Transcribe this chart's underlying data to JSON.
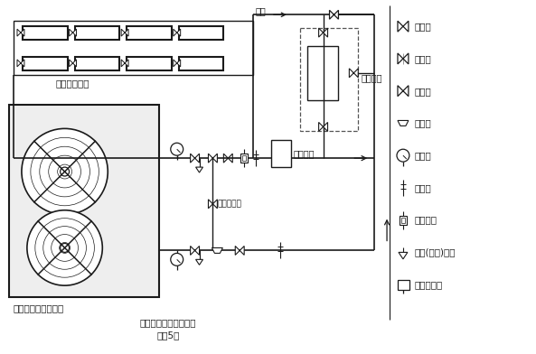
{
  "title": "闭式水系统安装参考图",
  "subtitle": "（图5）",
  "chiller_label": "风冷冷（热）水主机",
  "fancoil_label": "空调末端机组",
  "elec_heater_label": "电加热器",
  "bypass_label": "维护旁通阀",
  "water_supply_label": "补水",
  "legend": [
    "截止阀",
    "止回阀",
    "调节阀",
    "过滤器",
    "压力表",
    "温度计",
    "流量开关",
    "排水(排气)接头",
    "密闭膨胀罐"
  ],
  "bg_color": "#ffffff",
  "lc": "#1a1a1a"
}
